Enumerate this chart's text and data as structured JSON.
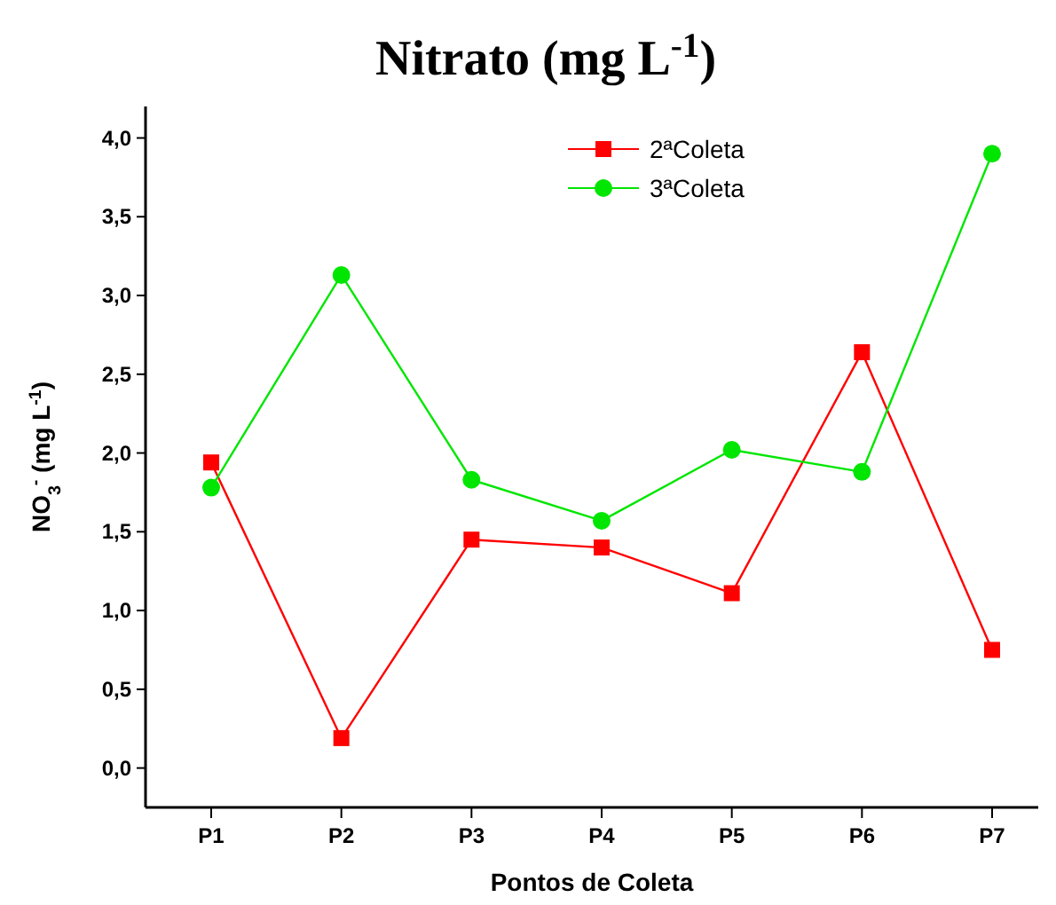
{
  "chart_data": {
    "type": "line",
    "title": "Nitrato (mg L$^{-1}$)",
    "xlabel": "Pontos de Coleta",
    "ylabel": "NO$_{3}$$^{-}$ (mg L$^{-1}$)",
    "categories": [
      "P1",
      "P2",
      "P3",
      "P4",
      "P5",
      "P6",
      "P7"
    ],
    "series": [
      {
        "name": "2ªColeta",
        "color": "#ff0000",
        "marker": "square",
        "values": [
          1.94,
          0.19,
          1.45,
          1.4,
          1.11,
          2.64,
          0.75
        ]
      },
      {
        "name": "3ªColeta",
        "color": "#00e600",
        "marker": "circle",
        "values": [
          1.78,
          3.13,
          1.83,
          1.57,
          2.02,
          1.88,
          3.9
        ]
      }
    ],
    "ylim": [
      -0.25,
      4.2
    ],
    "yticks": [
      {
        "value": 0,
        "label": "0,0"
      },
      {
        "value": 0.5,
        "label": "0,5"
      },
      {
        "value": 1,
        "label": "1,0"
      },
      {
        "value": 1.5,
        "label": "1,5"
      },
      {
        "value": 2,
        "label": "2,0"
      },
      {
        "value": 2.5,
        "label": "2,5"
      },
      {
        "value": 3,
        "label": "3,0"
      },
      {
        "value": 3.5,
        "label": "3,5"
      },
      {
        "value": 4,
        "label": "4,0"
      }
    ],
    "legend": "top right",
    "grid": false
  }
}
